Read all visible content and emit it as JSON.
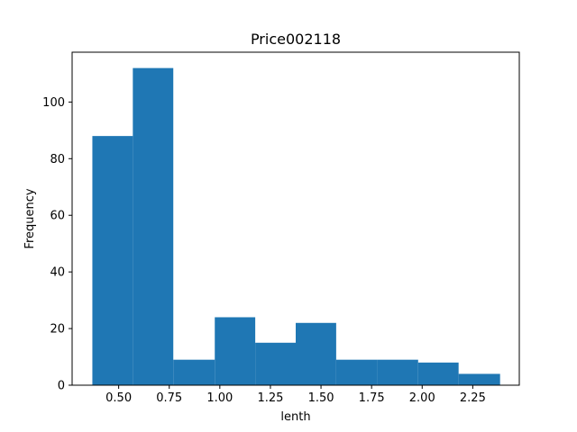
{
  "chart_data": {
    "type": "bar",
    "title": "Price002118",
    "xlabel": "lenth",
    "ylabel": "Frequency",
    "bins": [
      {
        "start": 0.37,
        "end": 0.57,
        "count": 88
      },
      {
        "start": 0.57,
        "end": 0.77,
        "count": 112
      },
      {
        "start": 0.77,
        "end": 0.975,
        "count": 9
      },
      {
        "start": 0.975,
        "end": 1.175,
        "count": 24
      },
      {
        "start": 1.175,
        "end": 1.375,
        "count": 15
      },
      {
        "start": 1.375,
        "end": 1.575,
        "count": 22
      },
      {
        "start": 1.575,
        "end": 1.78,
        "count": 9
      },
      {
        "start": 1.78,
        "end": 1.98,
        "count": 9
      },
      {
        "start": 1.98,
        "end": 2.18,
        "count": 8
      },
      {
        "start": 2.18,
        "end": 2.385,
        "count": 4
      }
    ],
    "xlim": [
      0.27,
      2.48
    ],
    "ylim": [
      0,
      117.6
    ],
    "xticks": [
      0.5,
      0.75,
      1.0,
      1.25,
      1.5,
      1.75,
      2.0,
      2.25
    ],
    "xtick_labels": [
      "0.50",
      "0.75",
      "1.00",
      "1.25",
      "1.50",
      "1.75",
      "2.00",
      "2.25"
    ],
    "yticks": [
      0,
      20,
      40,
      60,
      80,
      100
    ],
    "ytick_labels": [
      "0",
      "20",
      "40",
      "60",
      "80",
      "100"
    ],
    "bar_color": "#1f77b4",
    "grid": false,
    "legend": "none"
  }
}
